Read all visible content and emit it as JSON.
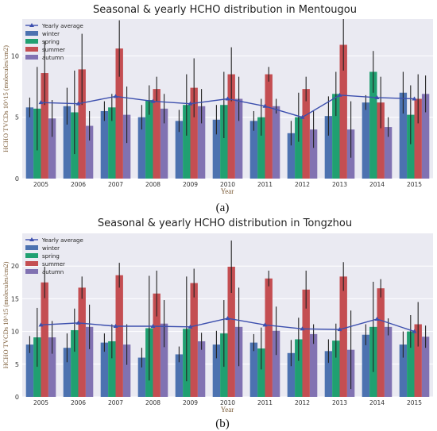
{
  "chart_data": [
    {
      "type": "bar",
      "title": "Seasonal & yearly HCHO distribution in Mentougou",
      "xlabel": "Year",
      "ylabel": "HCHO TVCDs 10^15 (molecules/cm2)",
      "categories": [
        "2005",
        "2006",
        "2007",
        "2008",
        "2009",
        "2010",
        "2011",
        "2012",
        "2013",
        "2014",
        "2015"
      ],
      "ylim": [
        0,
        13
      ],
      "yticks": [
        0,
        5,
        10
      ],
      "grid": true,
      "legend_position": "top-left",
      "panel_label": "(a)",
      "line_series": {
        "name": "Yearly average",
        "color": "#3c4fae",
        "values": [
          6.2,
          6.1,
          6.7,
          6.3,
          6.1,
          6.5,
          5.9,
          5.0,
          6.8,
          6.6,
          6.5
        ]
      },
      "series": [
        {
          "name": "winter",
          "color": "#4c72b0",
          "values": [
            5.8,
            5.9,
            5.5,
            5.0,
            4.7,
            4.8,
            4.7,
            3.7,
            5.1,
            6.2,
            7.0
          ],
          "errors": [
            0.8,
            1.5,
            0.8,
            1.0,
            0.9,
            1.2,
            0.8,
            1.0,
            1.6,
            0.6,
            1.7
          ]
        },
        {
          "name": "spring",
          "color": "#20a071",
          "values": [
            5.7,
            5.4,
            5.8,
            6.4,
            6.0,
            6.0,
            5.0,
            5.0,
            6.9,
            8.7,
            5.2
          ],
          "errors": [
            3.4,
            3.4,
            1.1,
            1.2,
            2.5,
            2.7,
            1.5,
            2.0,
            1.8,
            1.7,
            2.4
          ]
        },
        {
          "name": "summer",
          "color": "#c44e52",
          "values": [
            8.6,
            8.9,
            10.6,
            7.3,
            7.4,
            8.5,
            8.5,
            7.3,
            10.9,
            6.2,
            6.5
          ],
          "errors": [
            2.6,
            2.9,
            2.3,
            1.0,
            2.4,
            2.2,
            0.6,
            1.0,
            2.1,
            2.1,
            2.0
          ]
        },
        {
          "name": "autumn",
          "color": "#8172b2",
          "values": [
            4.9,
            4.3,
            5.2,
            5.7,
            5.9,
            6.5,
            5.9,
            4.0,
            4.0,
            4.2,
            6.9
          ],
          "errors": [
            1.5,
            1.2,
            2.3,
            1.2,
            1.4,
            1.8,
            0.6,
            1.5,
            2.3,
            0.8,
            1.5
          ]
        }
      ]
    },
    {
      "type": "bar",
      "title": "Seasonal & yearly HCHO distribution in Tongzhou",
      "xlabel": "Year",
      "ylabel": "HCHO TVCDs 10^15 (molecules/cm2)",
      "categories": [
        "2005",
        "2006",
        "2007",
        "2008",
        "2009",
        "2010",
        "2011",
        "2012",
        "2013",
        "2014",
        "2015"
      ],
      "ylim": [
        0,
        25
      ],
      "yticks": [
        0,
        5,
        10,
        15,
        20
      ],
      "grid": true,
      "legend_position": "top-left",
      "panel_label": "(b)",
      "line_series": {
        "name": "Yearly average",
        "color": "#3c4fae",
        "values": [
          11.0,
          11.3,
          10.8,
          10.8,
          10.7,
          12.0,
          11.0,
          10.4,
          10.3,
          11.9,
          10.0
        ]
      },
      "series": [
        {
          "name": "winter",
          "color": "#4c72b0",
          "values": [
            8.0,
            7.5,
            8.3,
            6.0,
            6.5,
            8.0,
            8.3,
            6.7,
            7.0,
            9.5,
            8.0
          ],
          "errors": [
            1.3,
            2.2,
            1.4,
            1.5,
            1.2,
            2.1,
            1.3,
            2.0,
            1.8,
            1.6,
            2.0
          ]
        },
        {
          "name": "spring",
          "color": "#20a071",
          "values": [
            9.1,
            10.2,
            8.5,
            10.5,
            10.4,
            9.7,
            7.4,
            8.8,
            8.6,
            10.7,
            10.0
          ],
          "errors": [
            4.5,
            3.3,
            2.6,
            8.0,
            8.0,
            5.1,
            3.2,
            3.3,
            2.6,
            6.9,
            2.5
          ]
        },
        {
          "name": "summer",
          "color": "#c44e52",
          "values": [
            17.5,
            16.7,
            18.6,
            15.8,
            17.4,
            19.9,
            18.1,
            16.4,
            18.4,
            16.6,
            11.1
          ],
          "errors": [
            2.4,
            1.7,
            1.9,
            3.5,
            2.2,
            4.0,
            1.2,
            2.9,
            2.2,
            1.4,
            3.4
          ]
        },
        {
          "name": "autumn",
          "color": "#8172b2",
          "values": [
            9.1,
            10.7,
            8.0,
            11.2,
            8.5,
            10.7,
            10.1,
            9.6,
            7.2,
            10.7,
            9.2
          ],
          "errors": [
            2.5,
            3.4,
            3.1,
            3.6,
            1.3,
            6.0,
            3.7,
            1.5,
            6.0,
            1.3,
            1.7
          ]
        }
      ]
    }
  ]
}
